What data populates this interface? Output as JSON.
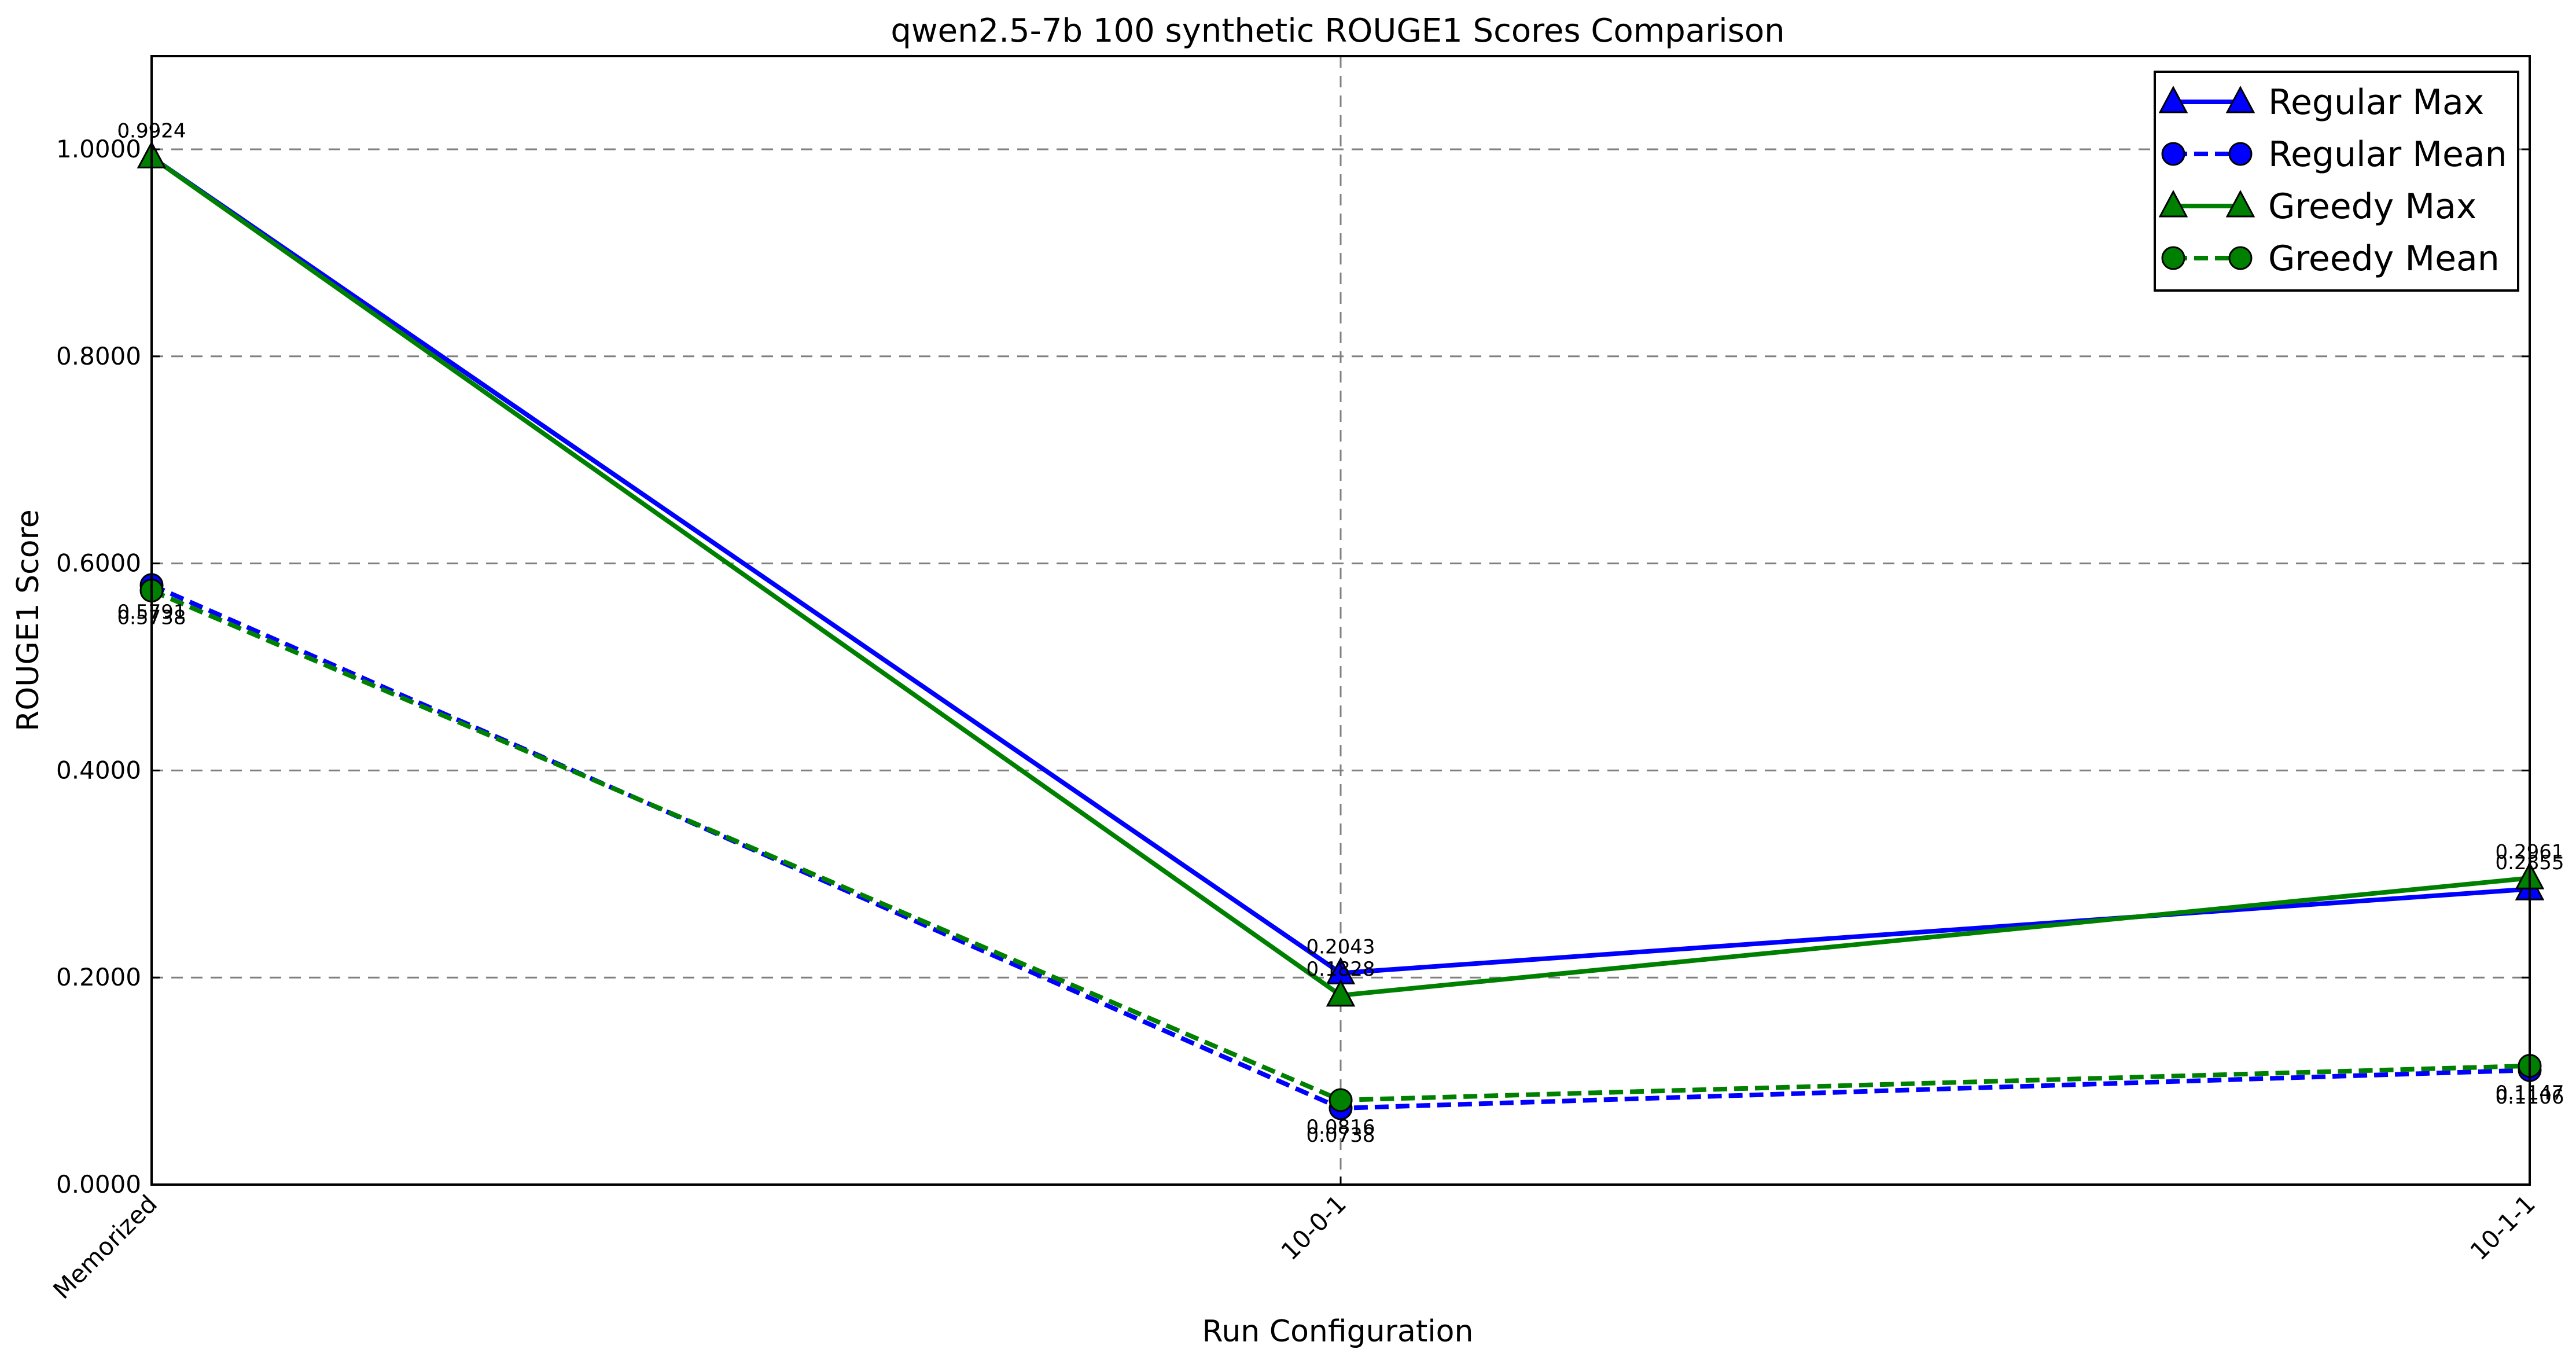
{
  "chart_data": {
    "type": "line",
    "title": "qwen2.5-7b 100 synthetic ROUGE1 Scores Comparison",
    "xlabel": "Run Configuration",
    "ylabel": "ROUGE1 Score",
    "categories": [
      "Memorized",
      "10-0-1",
      "10-1-1"
    ],
    "ylim": [
      0,
      1.09
    ],
    "yticks": [
      0,
      0.2,
      0.4,
      0.6,
      0.8,
      1.0
    ],
    "ytick_labels": [
      "0.0000",
      "0.2000",
      "0.4000",
      "0.6000",
      "0.8000",
      "1.0000"
    ],
    "grid": true,
    "legend_position": "top-right",
    "series": [
      {
        "name": "Regular Max",
        "values": [
          0.9924,
          0.2043,
          0.2855
        ],
        "labels": [
          "0.9924",
          "0.2043",
          "0.2855"
        ],
        "label_side": "above",
        "color": "#0000ff",
        "linestyle": "solid",
        "marker": "triangle"
      },
      {
        "name": "Regular Mean",
        "values": [
          0.5791,
          0.0738,
          0.1106
        ],
        "labels": [
          "0.5791",
          "0.0738",
          "0.1106"
        ],
        "label_side": "below",
        "color": "#0000ff",
        "linestyle": "dashed",
        "marker": "circle"
      },
      {
        "name": "Greedy Max",
        "values": [
          0.9924,
          0.1828,
          0.2961
        ],
        "labels": [
          "0.9924",
          "0.1828",
          "0.2961"
        ],
        "label_side": "above",
        "color": "#008000",
        "linestyle": "solid",
        "marker": "triangle"
      },
      {
        "name": "Greedy Mean",
        "values": [
          0.5738,
          0.0816,
          0.1147
        ],
        "labels": [
          "0.5738",
          "0.0816",
          "0.1147"
        ],
        "label_side": "below",
        "color": "#008000",
        "linestyle": "dashed",
        "marker": "circle"
      }
    ]
  }
}
